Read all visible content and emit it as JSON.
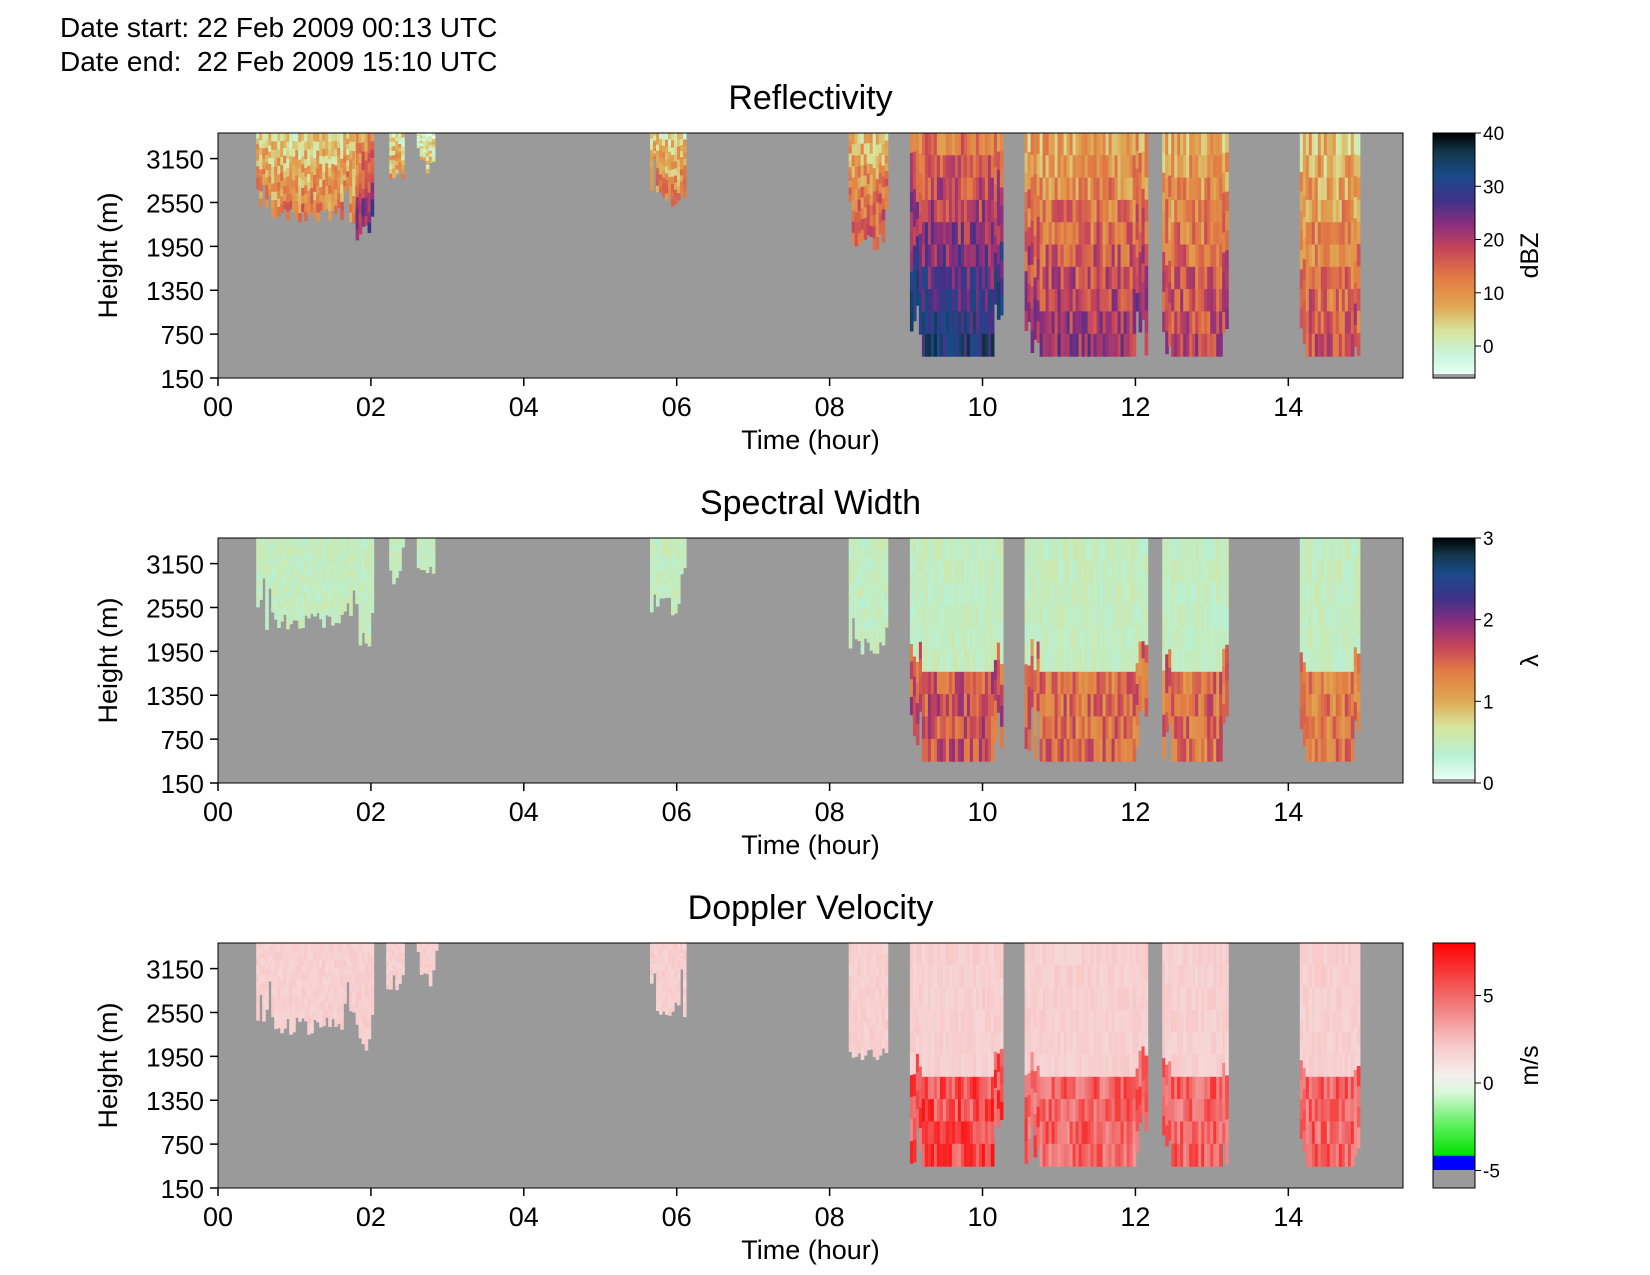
{
  "header": {
    "date_start": "Date start: 22 Feb 2009 00:13 UTC",
    "date_end": "Date end:  22 Feb 2009 15:10 UTC"
  },
  "chart_data": [
    {
      "type": "heatmap",
      "title": "Reflectivity",
      "xlabel": "Time (hour)",
      "ylabel": "Height (m)",
      "x_ticks": [
        "00",
        "02",
        "04",
        "06",
        "08",
        "10",
        "12",
        "14"
      ],
      "xlim": [
        0,
        15.5
      ],
      "y_ticks": [
        "150",
        "750",
        "1350",
        "1950",
        "2550",
        "3150"
      ],
      "ylim": [
        150,
        3500
      ],
      "colorbar": {
        "label": "dBZ",
        "ticks": [
          "0",
          "10",
          "20",
          "30",
          "40"
        ],
        "range": [
          -6,
          40
        ]
      },
      "background_color": "#9a9a9a",
      "echo_segments": [
        {
          "t0": 0.5,
          "t1": 1.8,
          "bottom": 2250,
          "intensity": 0.35
        },
        {
          "t0": 1.8,
          "t1": 2.0,
          "bottom": 2000,
          "intensity": 0.6
        },
        {
          "t0": 2.2,
          "t1": 2.4,
          "bottom": 2850,
          "intensity": 0.3
        },
        {
          "t0": 2.6,
          "t1": 2.85,
          "bottom": 2900,
          "intensity": 0.2
        },
        {
          "t0": 5.65,
          "t1": 6.1,
          "bottom": 2450,
          "intensity": 0.35
        },
        {
          "t0": 8.25,
          "t1": 8.75,
          "bottom": 1900,
          "intensity": 0.45
        },
        {
          "t0": 9.05,
          "t1": 10.25,
          "bottom": 450,
          "intensity": 0.75
        },
        {
          "t0": 10.55,
          "t1": 12.15,
          "bottom": 450,
          "intensity": 0.55
        },
        {
          "t0": 12.35,
          "t1": 13.2,
          "bottom": 450,
          "intensity": 0.5
        },
        {
          "t0": 14.15,
          "t1": 14.9,
          "bottom": 450,
          "intensity": 0.45
        }
      ]
    },
    {
      "type": "heatmap",
      "title": "Spectral Width",
      "xlabel": "Time (hour)",
      "ylabel": "Height (m)",
      "x_ticks": [
        "00",
        "02",
        "04",
        "06",
        "08",
        "10",
        "12",
        "14"
      ],
      "xlim": [
        0,
        15.5
      ],
      "y_ticks": [
        "150",
        "750",
        "1350",
        "1950",
        "2550",
        "3150"
      ],
      "ylim": [
        150,
        3500
      ],
      "colorbar": {
        "label": "λ",
        "ticks": [
          "0",
          "1",
          "2",
          "3"
        ],
        "range": [
          0,
          3
        ]
      },
      "background_color": "#9a9a9a",
      "echo_segments": [
        {
          "t0": 0.5,
          "t1": 1.8,
          "bottom": 2250,
          "intensity": 0.08
        },
        {
          "t0": 1.8,
          "t1": 2.0,
          "bottom": 2000,
          "intensity": 0.08
        },
        {
          "t0": 2.2,
          "t1": 2.4,
          "bottom": 2850,
          "intensity": 0.08
        },
        {
          "t0": 2.6,
          "t1": 2.85,
          "bottom": 2900,
          "intensity": 0.08
        },
        {
          "t0": 5.65,
          "t1": 6.1,
          "bottom": 2450,
          "intensity": 0.08
        },
        {
          "t0": 8.25,
          "t1": 8.75,
          "bottom": 1900,
          "intensity": 0.1
        },
        {
          "t0": 9.05,
          "t1": 10.25,
          "bottom": 450,
          "intensity": 0.5
        },
        {
          "t0": 10.55,
          "t1": 12.15,
          "bottom": 450,
          "intensity": 0.45
        },
        {
          "t0": 12.35,
          "t1": 13.2,
          "bottom": 450,
          "intensity": 0.45
        },
        {
          "t0": 14.15,
          "t1": 14.9,
          "bottom": 450,
          "intensity": 0.42
        }
      ]
    },
    {
      "type": "heatmap",
      "title": "Doppler Velocity",
      "xlabel": "Time (hour)",
      "ylabel": "Height (m)",
      "x_ticks": [
        "00",
        "02",
        "04",
        "06",
        "08",
        "10",
        "12",
        "14"
      ],
      "xlim": [
        0,
        15.5
      ],
      "y_ticks": [
        "150",
        "750",
        "1350",
        "1950",
        "2550",
        "3150"
      ],
      "ylim": [
        150,
        3500
      ],
      "colorbar": {
        "label": "m/s",
        "ticks": [
          "-5",
          "0",
          "5"
        ],
        "range": [
          -6,
          8
        ]
      },
      "background_color": "#9a9a9a",
      "echo_segments": [
        {
          "t0": 0.5,
          "t1": 1.8,
          "bottom": 2250,
          "intensity": 0.25
        },
        {
          "t0": 1.8,
          "t1": 2.0,
          "bottom": 2000,
          "intensity": 0.25
        },
        {
          "t0": 2.2,
          "t1": 2.4,
          "bottom": 2850,
          "intensity": 0.25
        },
        {
          "t0": 2.6,
          "t1": 2.85,
          "bottom": 2900,
          "intensity": 0.25
        },
        {
          "t0": 5.65,
          "t1": 6.1,
          "bottom": 2450,
          "intensity": 0.25
        },
        {
          "t0": 8.25,
          "t1": 8.75,
          "bottom": 1900,
          "intensity": 0.28
        },
        {
          "t0": 9.05,
          "t1": 10.25,
          "bottom": 450,
          "intensity": 0.85
        },
        {
          "t0": 10.55,
          "t1": 12.15,
          "bottom": 450,
          "intensity": 0.75
        },
        {
          "t0": 12.35,
          "t1": 13.2,
          "bottom": 450,
          "intensity": 0.75
        },
        {
          "t0": 14.15,
          "t1": 14.9,
          "bottom": 450,
          "intensity": 0.75
        }
      ]
    }
  ]
}
